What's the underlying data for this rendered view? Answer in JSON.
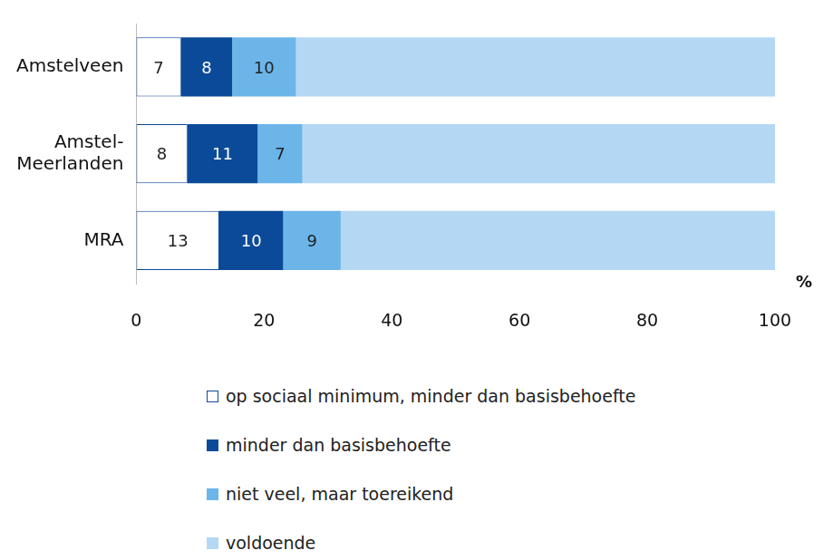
{
  "chart_data": {
    "type": "bar",
    "orientation": "horizontal",
    "stacked": true,
    "categories": [
      "Amstelveen",
      "Amstel-Meerlanden",
      "MRA"
    ],
    "series": [
      {
        "name": "op sociaal minimum, minder dan basisbehoefte",
        "color": "#ffffff",
        "values": [
          7,
          8,
          13
        ],
        "data_labels": true
      },
      {
        "name": "minder dan basisbehoefte",
        "color": "#0b4a98",
        "values": [
          8,
          11,
          10
        ],
        "data_labels": true
      },
      {
        "name": "niet veel, maar toereikend",
        "color": "#6bb5e9",
        "values": [
          10,
          7,
          9
        ],
        "data_labels": true
      },
      {
        "name": "voldoende",
        "color": "#b4d8f4",
        "values": [
          75,
          74,
          68
        ],
        "data_labels": false
      }
    ],
    "xlabel": "%",
    "xlim": [
      0,
      100
    ],
    "xticks": [
      0,
      20,
      40,
      60,
      80,
      100
    ],
    "grid": false,
    "legend": "bottom"
  }
}
